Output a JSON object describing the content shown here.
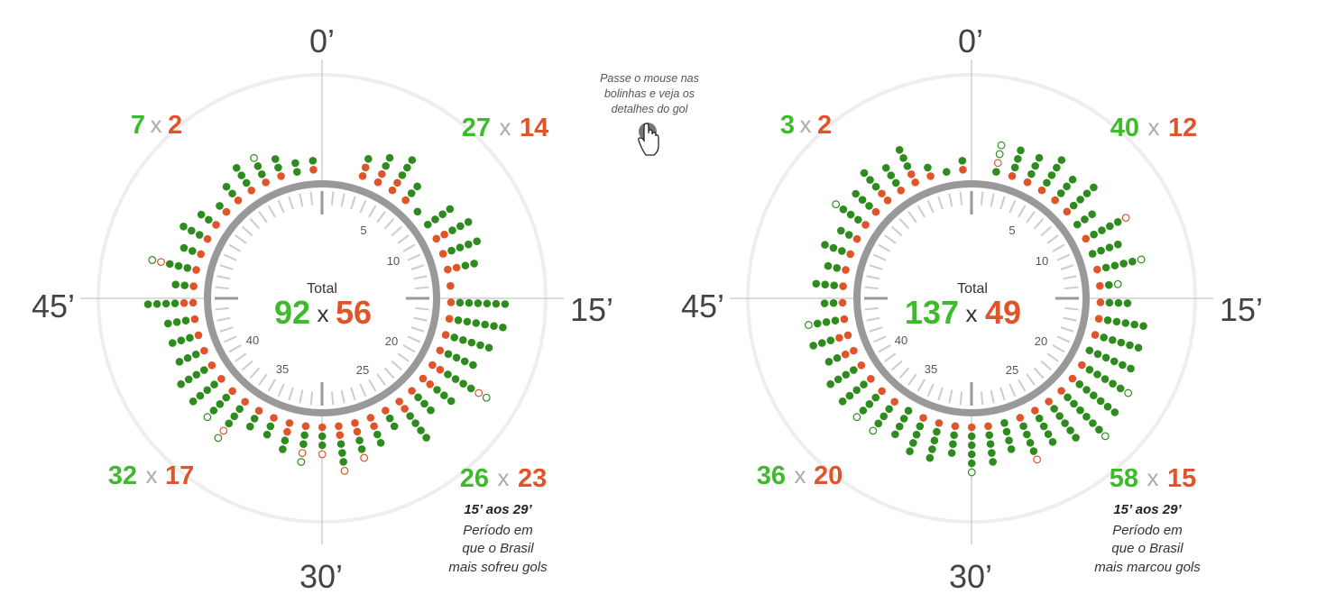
{
  "hint": [
    "Passe o mouse nas",
    "bolinhas e veja os",
    "detalhes do gol"
  ],
  "colors": {
    "scored": "#3dbb2c",
    "conceded": "#e0542a",
    "dot_scored": "#2e8b1e",
    "dot_conceded": "#e0542a",
    "ring": "#999999",
    "outer_ring": "#eeeeee"
  },
  "chart_data": [
    {
      "type": "radial-dot",
      "total_label": "Total",
      "total": {
        "scored": "92",
        "x": "x",
        "conceded": "56"
      },
      "axis_labels": {
        "top": "0’",
        "right": "15’",
        "bottom": "30’",
        "left": "45’"
      },
      "minute_labels": [
        "5",
        "10",
        "20",
        "25",
        "35",
        "40"
      ],
      "quarters": [
        {
          "period": "0-14",
          "scored": "27",
          "x": "x",
          "conceded": "14"
        },
        {
          "period": "15-29",
          "scored": "26",
          "x": "x",
          "conceded": "23"
        },
        {
          "period": "30-44",
          "scored": "32",
          "x": "x",
          "conceded": "17"
        },
        {
          "period": "45+",
          "scored": "7",
          "x": "x",
          "conceded": "2"
        }
      ],
      "note": {
        "title": "15’ aos 29’",
        "lines": [
          "Período em",
          "que o Brasil",
          "mais sofreu gols"
        ]
      },
      "goals_by_minute": {
        "scored": [
          0,
          1,
          2,
          3,
          2,
          1,
          4,
          3,
          4,
          2,
          0,
          6,
          6,
          5,
          4,
          4,
          3,
          3,
          4,
          2,
          2,
          2,
          3,
          2,
          2,
          2,
          2,
          2,
          3,
          3,
          4,
          4,
          3,
          3,
          3,
          4,
          2,
          3,
          2,
          3,
          2,
          1,
          2,
          3,
          2,
          2,
          2,
          1
        ],
        "conceded": [
          0,
          2,
          2,
          2,
          1,
          0,
          0,
          2,
          1,
          2,
          1,
          1,
          1,
          1,
          1,
          2,
          2,
          1,
          2,
          1,
          2,
          2,
          2,
          1,
          1,
          2,
          1,
          1,
          1,
          1,
          1,
          1,
          1,
          1,
          1,
          2,
          1,
          1,
          1,
          1,
          1,
          1,
          1,
          1,
          1,
          1,
          0,
          1
        ],
        "open_scored": [
          0,
          0,
          0,
          0,
          0,
          0,
          0,
          0,
          0,
          0,
          0,
          0,
          0,
          0,
          0,
          1,
          0,
          0,
          0,
          0,
          0,
          0,
          0,
          0,
          1,
          0,
          0,
          0,
          1,
          1,
          0,
          0,
          0,
          0,
          0,
          0,
          0,
          1,
          0,
          0,
          0,
          0,
          0,
          0,
          1,
          0,
          0,
          0
        ],
        "open_conceded": [
          0,
          0,
          0,
          0,
          0,
          0,
          0,
          0,
          0,
          0,
          0,
          0,
          0,
          0,
          0,
          1,
          0,
          0,
          0,
          0,
          0,
          1,
          1,
          1,
          1,
          0,
          0,
          0,
          1,
          0,
          0,
          0,
          0,
          0,
          0,
          0,
          0,
          1,
          0,
          0,
          0,
          0,
          0,
          0,
          0,
          0,
          0,
          0
        ]
      }
    },
    {
      "type": "radial-dot",
      "total_label": "Total",
      "total": {
        "scored": "137",
        "x": "x",
        "conceded": "49"
      },
      "axis_labels": {
        "top": "0’",
        "right": "15’",
        "bottom": "30’",
        "left": "45’"
      },
      "minute_labels": [
        "5",
        "10",
        "20",
        "25",
        "35",
        "40"
      ],
      "quarters": [
        {
          "period": "0-14",
          "scored": "40",
          "x": "x",
          "conceded": "12"
        },
        {
          "period": "15-29",
          "scored": "58",
          "x": "x",
          "conceded": "15"
        },
        {
          "period": "30-44",
          "scored": "36",
          "x": "x",
          "conceded": "20"
        },
        {
          "period": "45+",
          "scored": "3",
          "x": "x",
          "conceded": "2"
        }
      ],
      "note": {
        "title": "15’ aos 29’",
        "lines": [
          "Período em",
          "que o Brasil",
          "mais marcou gols"
        ]
      },
      "goals_by_minute": {
        "scored": [
          1,
          3,
          3,
          4,
          3,
          4,
          3,
          4,
          4,
          4,
          1,
          3,
          5,
          5,
          6,
          5,
          6,
          6,
          5,
          4,
          4,
          4,
          4,
          4,
          3,
          4,
          4,
          4,
          3,
          3,
          4,
          4,
          2,
          3,
          3,
          2,
          3,
          2,
          3,
          2,
          3,
          3,
          3,
          3,
          3,
          1,
          1,
          1
        ],
        "conceded": [
          0,
          1,
          1,
          1,
          1,
          1,
          0,
          1,
          0,
          1,
          1,
          1,
          1,
          1,
          0,
          1,
          1,
          1,
          1,
          1,
          1,
          0,
          1,
          1,
          1,
          1,
          1,
          0,
          1,
          1,
          1,
          1,
          2,
          2,
          1,
          1,
          1,
          1,
          1,
          1,
          1,
          1,
          2,
          1,
          2,
          1,
          0,
          1
        ],
        "open_scored": [
          2,
          0,
          0,
          0,
          0,
          0,
          0,
          0,
          0,
          1,
          1,
          0,
          0,
          0,
          0,
          1,
          0,
          1,
          0,
          0,
          0,
          0,
          0,
          1,
          0,
          0,
          0,
          0,
          1,
          1,
          0,
          0,
          0,
          0,
          1,
          0,
          0,
          0,
          0,
          0,
          1,
          0,
          0,
          0,
          0,
          0,
          0,
          0
        ],
        "open_conceded": [
          1,
          0,
          0,
          0,
          0,
          0,
          0,
          1,
          0,
          0,
          0,
          0,
          0,
          0,
          0,
          0,
          0,
          0,
          0,
          0,
          1,
          0,
          0,
          0,
          0,
          0,
          0,
          0,
          0,
          0,
          0,
          0,
          0,
          0,
          0,
          0,
          0,
          0,
          0,
          0,
          0,
          0,
          0,
          0,
          0,
          0,
          0,
          0
        ]
      }
    }
  ]
}
